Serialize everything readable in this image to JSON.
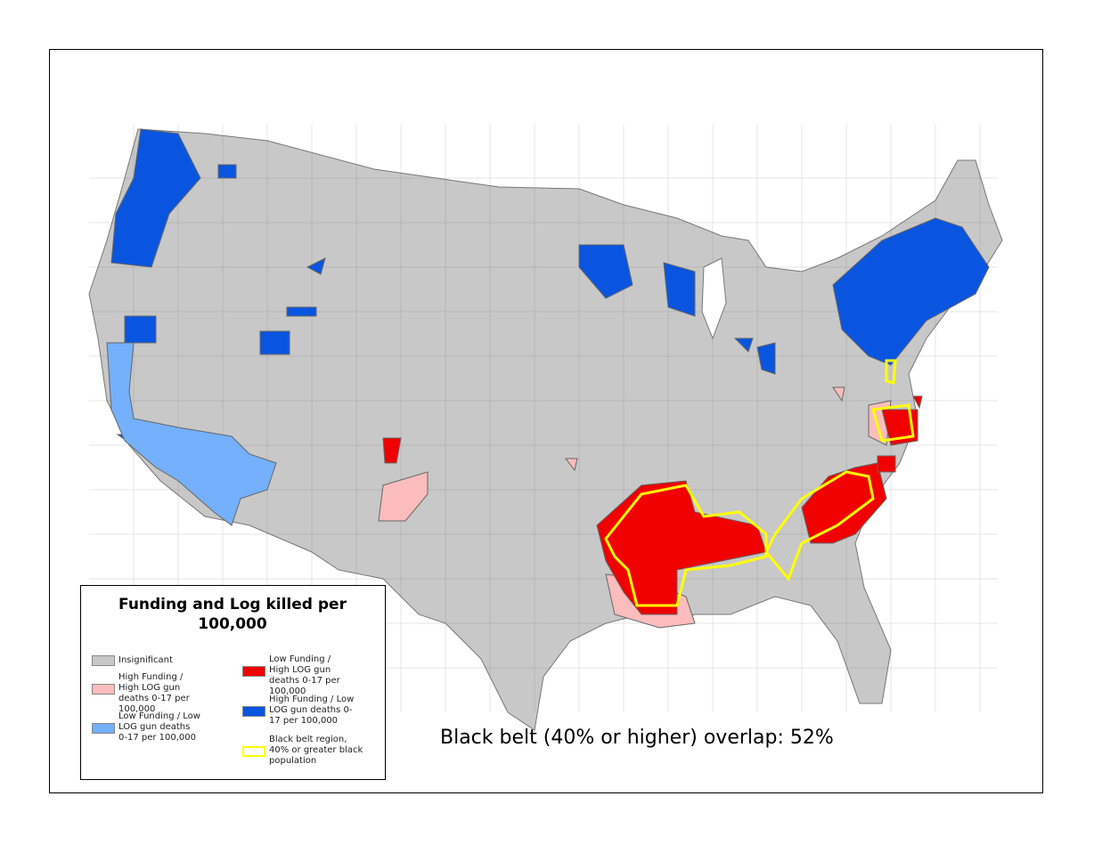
{
  "map": {
    "legend": {
      "title": "Funding and Log killed per 100,000",
      "items": [
        {
          "label": "Insignificant",
          "color": "#c8c8c8"
        },
        {
          "label": "High Funding / High LOG gun deaths 0-17 per 100,000",
          "color": "#fbbcbc"
        },
        {
          "label": "Low Funding / Low LOG gun deaths 0-17 per 100,000",
          "color": "#74b0fb"
        },
        {
          "label": "Low Funding / High LOG gun deaths 0-17 per 100,000",
          "color": "#f00000"
        },
        {
          "label": "High Funding  / Low LOG gun deaths 0-17 per 100,000",
          "color": "#0a55e0"
        },
        {
          "label": "Black belt region, 40% or greater black population",
          "color": "#ffff00",
          "outline": true
        }
      ]
    },
    "annotation": "Black belt (40% or higher) overlap: 52%"
  }
}
